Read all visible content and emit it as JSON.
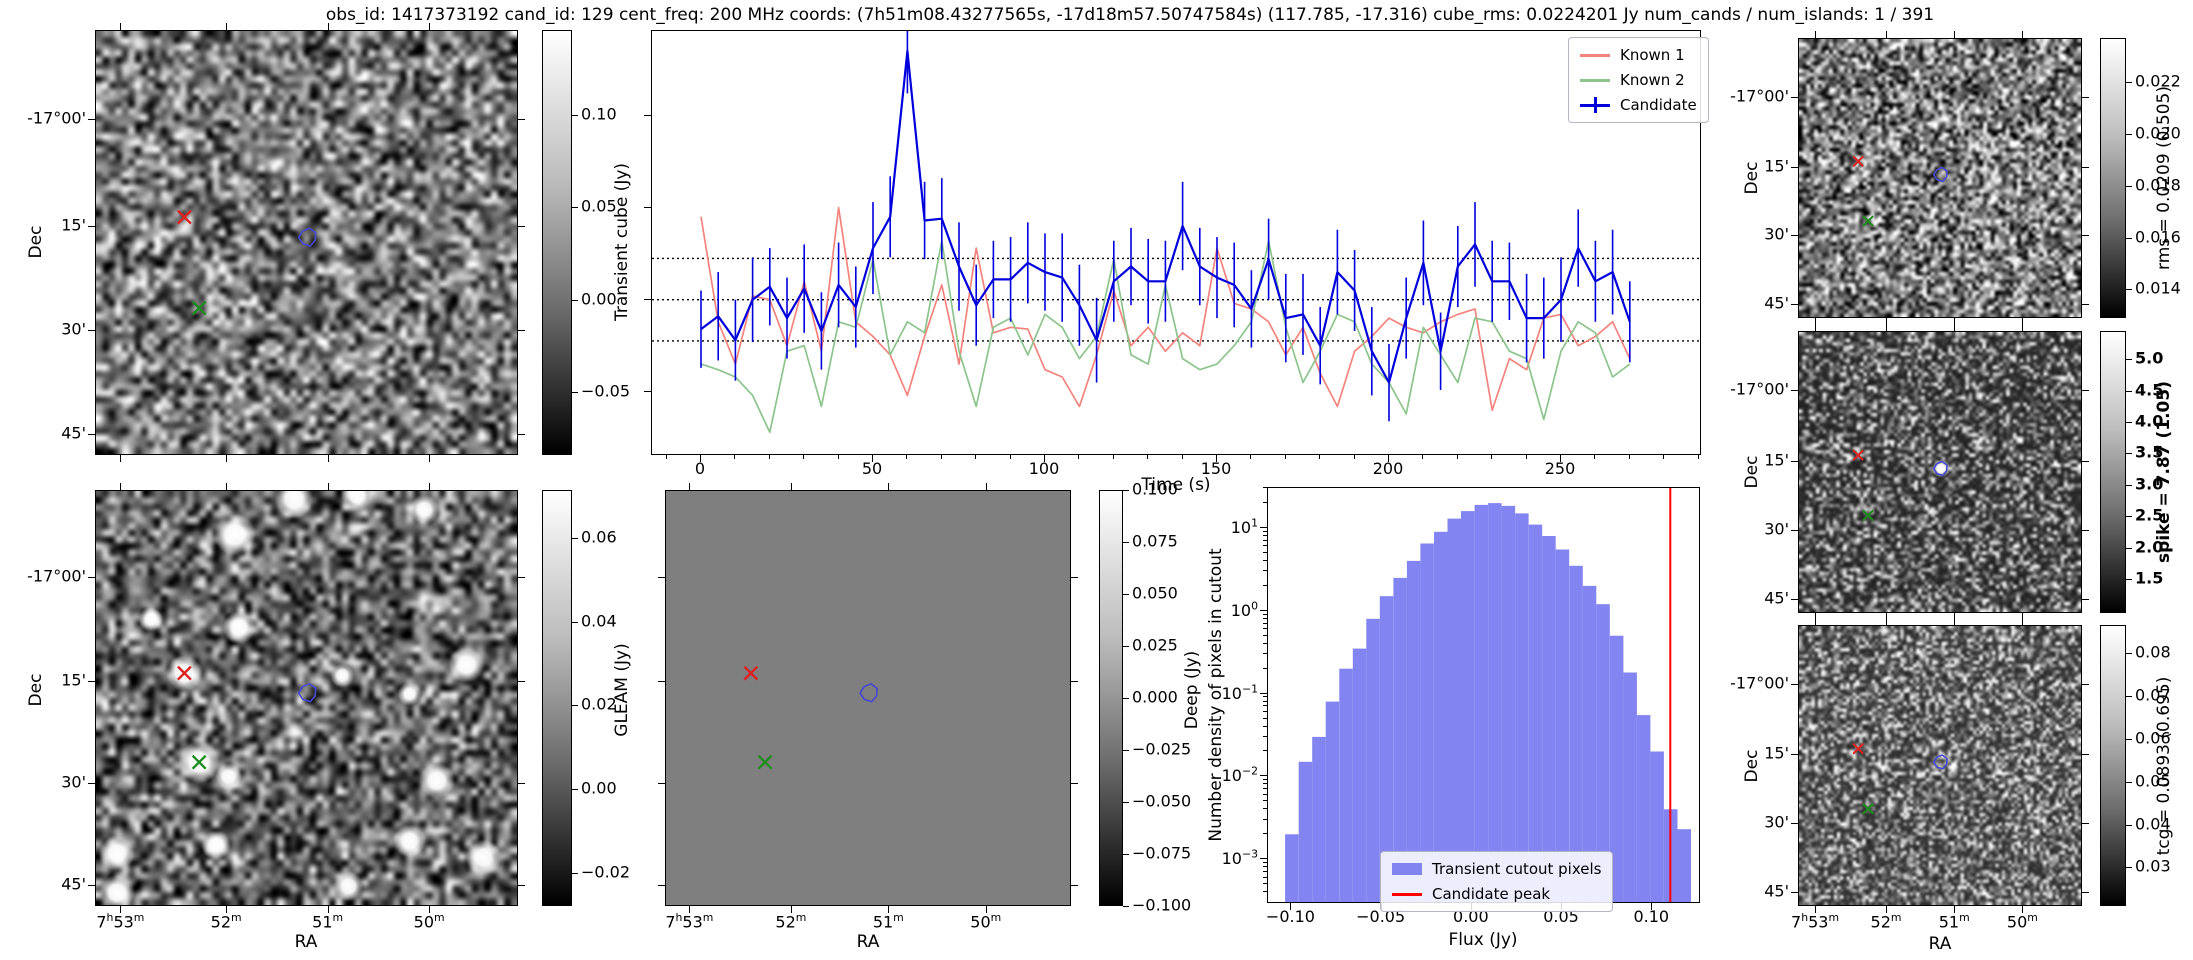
{
  "title": "obs_id: 1417373192 cand_id: 129 cent_freq: 200 MHz coords: (7h51m08.43277565s, -17d18m57.50747584s) (117.785, -17.316) cube_rms: 0.0224201 Jy num_cands / num_islands: 1 / 391",
  "sky": {
    "ylabel": "Dec",
    "xlabel": "RA",
    "dec_ticks": [
      "-17°00'",
      "15'",
      "30'",
      "45'"
    ],
    "dec_fracs": [
      0.21,
      0.46,
      0.705,
      0.95
    ],
    "ra_ticks": [
      "7h53m",
      "52m",
      "51m",
      "50m"
    ],
    "ra_fracs": [
      0.06,
      0.31,
      0.55,
      0.79
    ],
    "markers": {
      "red_x": [
        0.21,
        0.44
      ],
      "green_x": [
        0.245,
        0.655
      ],
      "blue_contour": [
        0.503,
        0.487
      ]
    },
    "gleam_sources": [
      [
        0.47,
        0.02,
        13
      ],
      [
        0.62,
        0.01,
        11
      ],
      [
        0.33,
        0.105,
        14
      ],
      [
        0.78,
        0.045,
        10
      ],
      [
        0.34,
        0.33,
        11
      ],
      [
        0.21,
        0.44,
        12
      ],
      [
        0.88,
        0.42,
        12
      ],
      [
        0.585,
        0.445,
        8
      ],
      [
        0.745,
        0.49,
        8
      ],
      [
        0.245,
        0.655,
        14
      ],
      [
        0.315,
        0.69,
        9
      ],
      [
        0.81,
        0.7,
        12
      ],
      [
        0.745,
        0.845,
        11
      ],
      [
        0.05,
        0.875,
        12
      ],
      [
        0.285,
        0.855,
        10
      ],
      [
        0.05,
        0.97,
        12
      ],
      [
        0.6,
        0.955,
        10
      ],
      [
        0.92,
        0.885,
        12
      ],
      [
        0.13,
        0.31,
        8
      ]
    ]
  },
  "colors": {
    "known1": "#f4837d",
    "known2": "#8cc48c",
    "candidate": "#0000dd",
    "hist_fill": "#8284f1",
    "peak_line": "#ff0000",
    "marker_red": "#dd2222",
    "marker_green": "#1f8c1f",
    "contour_blue": "#4747d1"
  },
  "colorbars": {
    "transient": {
      "label": "Transient cube (Jy)",
      "bold": false,
      "vmin": -0.0838,
      "vmax": 0.1459,
      "ticks": [
        {
          "v": 0.1,
          "t": "0.10"
        },
        {
          "v": 0.05,
          "t": "0.05"
        },
        {
          "v": 0.0,
          "t": "0.00"
        },
        {
          "v": -0.05,
          "t": "−0.05"
        }
      ]
    },
    "gleam": {
      "label": "GLEAM (Jy)",
      "bold": false,
      "vmin": -0.028,
      "vmax": 0.0715,
      "ticks": [
        {
          "v": 0.06,
          "t": "0.06"
        },
        {
          "v": 0.04,
          "t": "0.04"
        },
        {
          "v": 0.02,
          "t": "0.02"
        },
        {
          "v": 0.0,
          "t": "0.00"
        },
        {
          "v": -0.02,
          "t": "−0.02"
        }
      ]
    },
    "deep": {
      "label": "Deep (Jy)",
      "bold": false,
      "vmin": -0.1,
      "vmax": 0.1,
      "ticks": [
        {
          "v": 0.1,
          "t": "0.100"
        },
        {
          "v": 0.075,
          "t": "0.075"
        },
        {
          "v": 0.05,
          "t": "0.050"
        },
        {
          "v": 0.025,
          "t": "0.025"
        },
        {
          "v": 0.0,
          "t": "0.000"
        },
        {
          "v": -0.025,
          "t": "−0.025"
        },
        {
          "v": -0.05,
          "t": "−0.050"
        },
        {
          "v": -0.075,
          "t": "−0.075"
        },
        {
          "v": -0.1,
          "t": "−0.100"
        }
      ]
    },
    "rms": {
      "label": "rms = 0.0209 (0.505)",
      "bold": false,
      "vmin": 0.0129,
      "vmax": 0.0237,
      "ticks": [
        {
          "v": 0.022,
          "t": "0.022"
        },
        {
          "v": 0.02,
          "t": "0.020"
        },
        {
          "v": 0.018,
          "t": "0.018"
        },
        {
          "v": 0.016,
          "t": "0.016"
        },
        {
          "v": 0.014,
          "t": "0.014"
        }
      ]
    },
    "spike": {
      "label": "spike = 7.87 (1.05)",
      "bold": true,
      "vmin": 0.96,
      "vmax": 5.45,
      "ticks": [
        {
          "v": 5.0,
          "t": "5.0"
        },
        {
          "v": 4.5,
          "t": "4.5"
        },
        {
          "v": 4.0,
          "t": "4.0"
        },
        {
          "v": 3.5,
          "t": "3.5"
        },
        {
          "v": 3.0,
          "t": "3.0"
        },
        {
          "v": 2.5,
          "t": "2.5"
        },
        {
          "v": 2.0,
          "t": "2.0"
        },
        {
          "v": 1.5,
          "t": "1.5"
        }
      ]
    },
    "tcg": {
      "label": "tcg = 0.0893 (0.695)",
      "bold": false,
      "vmin": 0.021,
      "vmax": 0.0866,
      "ticks": [
        {
          "v": 0.08,
          "t": "0.08"
        },
        {
          "v": 0.07,
          "t": "0.07"
        },
        {
          "v": 0.06,
          "t": "0.06"
        },
        {
          "v": 0.05,
          "t": "0.05"
        },
        {
          "v": 0.04,
          "t": "0.04"
        },
        {
          "v": 0.03,
          "t": "0.03"
        }
      ]
    }
  },
  "chart_data": [
    {
      "type": "line",
      "title": "",
      "xlabel": "Time (s)",
      "ylabel": "Transient cube (Jy)",
      "xlim": [
        -14.2,
        291
      ],
      "ylim": [
        -0.0838,
        0.1459
      ],
      "xticks": [
        0,
        50,
        100,
        150,
        200,
        250
      ],
      "yticks": [
        0.1,
        0.05,
        0.0,
        -0.05
      ],
      "hlines": [
        0.0224,
        0.0,
        -0.0224
      ],
      "legend_position": "upper right",
      "x": [
        0,
        5,
        10,
        15,
        20,
        25,
        30,
        35,
        40,
        45,
        50,
        55,
        60,
        65,
        70,
        75,
        80,
        85,
        90,
        95,
        100,
        105,
        110,
        115,
        120,
        125,
        130,
        135,
        140,
        145,
        150,
        155,
        160,
        165,
        170,
        175,
        180,
        185,
        190,
        195,
        200,
        205,
        210,
        215,
        220,
        225,
        230,
        235,
        240,
        245,
        250,
        255,
        260,
        265,
        270
      ],
      "series": [
        {
          "name": "Known 1",
          "color": "#f4837d",
          "values": [
            0.045,
            -0.012,
            -0.035,
            0.002,
            0.0,
            -0.025,
            0.01,
            -0.028,
            0.05,
            -0.012,
            -0.02,
            -0.03,
            -0.052,
            -0.02,
            0.008,
            -0.035,
            0.028,
            -0.018,
            -0.015,
            -0.016,
            -0.038,
            -0.042,
            -0.058,
            -0.03,
            0.005,
            -0.025,
            -0.015,
            -0.028,
            -0.018,
            -0.025,
            0.028,
            -0.002,
            -0.005,
            -0.012,
            -0.03,
            -0.015,
            -0.04,
            -0.058,
            -0.028,
            -0.02,
            -0.01,
            -0.015,
            -0.018,
            -0.012,
            -0.008,
            -0.005,
            -0.06,
            -0.032,
            -0.038,
            -0.01,
            -0.008,
            -0.025,
            -0.02,
            -0.012,
            -0.032
          ]
        },
        {
          "name": "Known 2",
          "color": "#8cc48c",
          "values": [
            -0.035,
            -0.038,
            -0.042,
            -0.052,
            -0.072,
            -0.028,
            -0.025,
            -0.058,
            -0.012,
            -0.015,
            0.022,
            -0.03,
            -0.012,
            -0.018,
            0.032,
            -0.028,
            -0.058,
            -0.015,
            -0.01,
            -0.03,
            -0.008,
            -0.015,
            -0.032,
            -0.02,
            0.022,
            -0.03,
            -0.035,
            0.008,
            -0.032,
            -0.038,
            -0.035,
            -0.025,
            -0.012,
            0.032,
            -0.015,
            -0.045,
            -0.028,
            -0.008,
            -0.012,
            -0.035,
            -0.045,
            -0.062,
            -0.015,
            -0.03,
            -0.045,
            -0.01,
            -0.012,
            -0.028,
            -0.032,
            -0.065,
            -0.028,
            -0.012,
            -0.018,
            -0.042,
            -0.035
          ]
        },
        {
          "name": "Candidate",
          "color": "#0000dd",
          "values": [
            -0.016,
            -0.009,
            -0.022,
            0.0,
            0.007,
            -0.01,
            0.006,
            -0.017,
            0.008,
            -0.004,
            0.028,
            0.045,
            0.135,
            0.043,
            0.044,
            0.018,
            -0.003,
            0.011,
            0.011,
            0.02,
            0.015,
            0.012,
            -0.003,
            -0.022,
            0.01,
            0.018,
            0.01,
            0.01,
            0.04,
            0.018,
            0.012,
            0.008,
            -0.005,
            0.022,
            -0.01,
            -0.008,
            -0.025,
            0.015,
            0.005,
            -0.028,
            -0.045,
            -0.01,
            0.02,
            -0.028,
            0.018,
            0.03,
            0.01,
            0.01,
            -0.01,
            -0.01,
            0.0,
            0.028,
            0.01,
            0.015,
            -0.012
          ],
          "yerr": [
            0.021,
            0.024,
            0.022,
            0.023,
            0.021,
            0.022,
            0.024,
            0.021,
            0.023,
            0.022,
            0.025,
            0.022,
            0.023,
            0.021,
            0.022,
            0.024,
            0.022,
            0.021,
            0.023,
            0.022,
            0.021,
            0.024,
            0.022,
            0.023,
            0.022,
            0.021,
            0.023,
            0.022,
            0.024,
            0.021,
            0.022,
            0.023,
            0.021,
            0.022,
            0.024,
            0.022,
            0.021,
            0.023,
            0.022,
            0.024,
            0.021,
            0.022,
            0.023,
            0.021,
            0.022,
            0.023,
            0.022,
            0.021,
            0.024,
            0.022,
            0.023,
            0.021,
            0.022,
            0.023,
            0.022
          ]
        }
      ]
    },
    {
      "type": "bar",
      "title": "",
      "xlabel": "Flux (Jy)",
      "ylabel": "Number density of pixels in cutout",
      "yscale": "log",
      "xlim": [
        -0.113,
        0.127
      ],
      "ylim": [
        0.00029,
        30
      ],
      "xticks": [
        {
          "v": -0.1,
          "t": "−0.10"
        },
        {
          "v": -0.05,
          "t": "−0.05"
        },
        {
          "v": 0.0,
          "t": "0.00"
        },
        {
          "v": 0.05,
          "t": "0.05"
        },
        {
          "v": 0.1,
          "t": "0.10"
        }
      ],
      "ytick_exponents": [
        1,
        0,
        -1,
        -2,
        -3
      ],
      "bin_start": -0.1035,
      "bin_width": 0.0075,
      "values": [
        0.002,
        0.015,
        0.03,
        0.08,
        0.2,
        0.35,
        0.8,
        1.5,
        2.5,
        4.0,
        6.5,
        9.0,
        13,
        16,
        19,
        20,
        18.5,
        15,
        11,
        8.0,
        5.5,
        3.5,
        2.0,
        1.2,
        0.5,
        0.18,
        0.055,
        0.02,
        0.004,
        0.0023
      ],
      "candidate_peak": 0.11,
      "legend": [
        "Transient cutout pixels",
        "Candidate peak"
      ]
    }
  ]
}
